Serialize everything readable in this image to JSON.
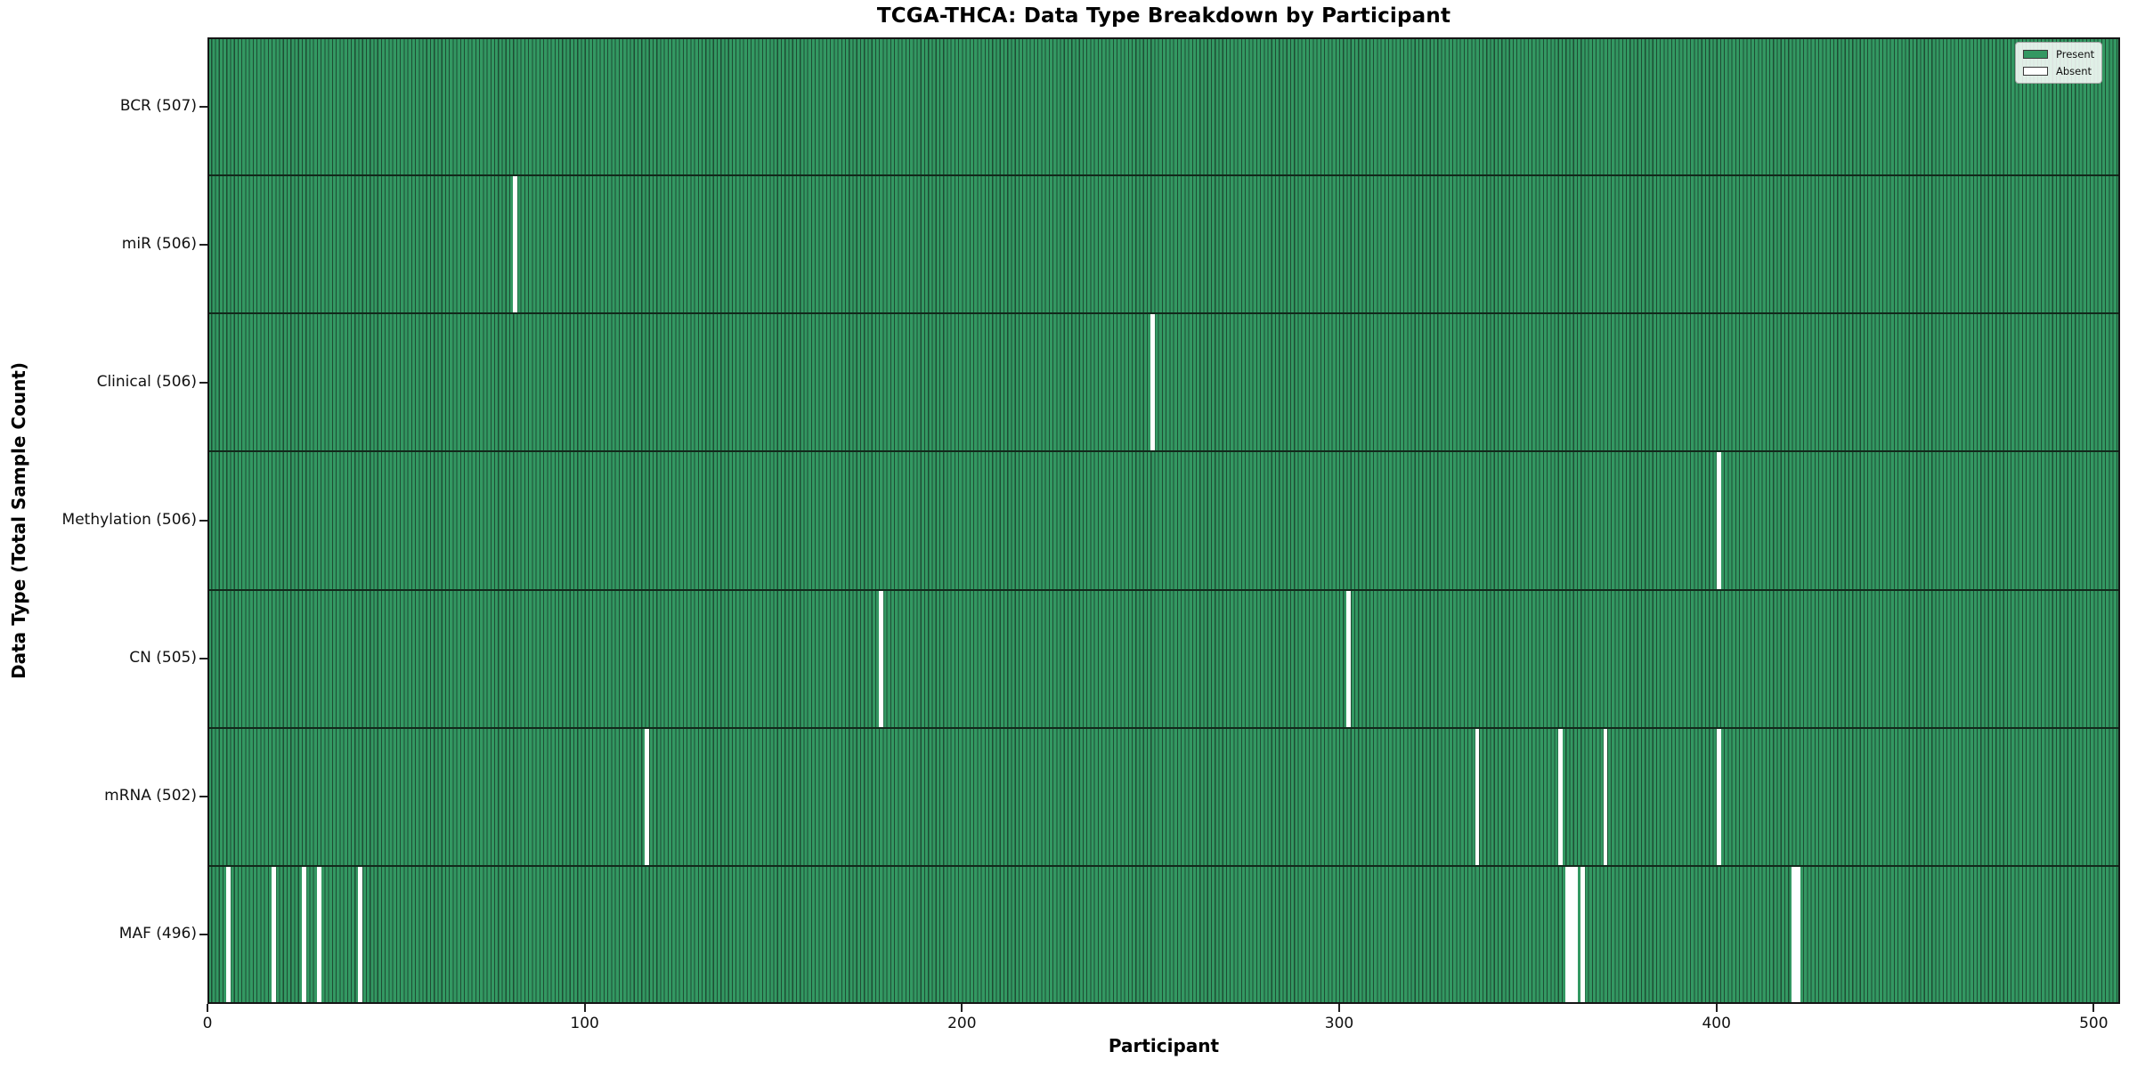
{
  "chart_data": {
    "type": "heatmap",
    "title": "TCGA-THCA: Data Type Breakdown by Participant",
    "xlabel": "Participant",
    "ylabel": "Data Type (Total Sample Count)",
    "n_participants": 507,
    "xlim": [
      0,
      507
    ],
    "x_ticks": [
      0,
      100,
      200,
      300,
      400,
      500
    ],
    "grid": false,
    "legend_position": "upper right",
    "legend": [
      {
        "label": "Present",
        "color": "#339862"
      },
      {
        "label": "Absent",
        "color": "#ffffff"
      }
    ],
    "colors": {
      "present_fill": "#339862",
      "bar_edge": "#1e4d34",
      "absent_fill": "#ffffff",
      "row_boundary": "#12291b",
      "axis_spine": "#151515"
    },
    "rows": [
      {
        "data_type": "BCR",
        "label": "BCR (507)",
        "present_count": 507,
        "absent_participants": []
      },
      {
        "data_type": "miR",
        "label": "miR (506)",
        "present_count": 506,
        "absent_participants": [
          81
        ]
      },
      {
        "data_type": "Clinical",
        "label": "Clinical (506)",
        "present_count": 506,
        "absent_participants": [
          250
        ]
      },
      {
        "data_type": "Methylation",
        "label": "Methylation (506)",
        "present_count": 506,
        "absent_participants": [
          400
        ]
      },
      {
        "data_type": "CN",
        "label": "CN (505)",
        "present_count": 505,
        "absent_participants": [
          178,
          302
        ]
      },
      {
        "data_type": "mRNA",
        "label": "mRNA (502)",
        "present_count": 502,
        "absent_participants": [
          116,
          336,
          358,
          370,
          400
        ]
      },
      {
        "data_type": "MAF",
        "label": "MAF (496)",
        "present_count": 496,
        "absent_participants": [
          5,
          17,
          25,
          29,
          40,
          360,
          361,
          362,
          364,
          420,
          421
        ]
      }
    ]
  }
}
